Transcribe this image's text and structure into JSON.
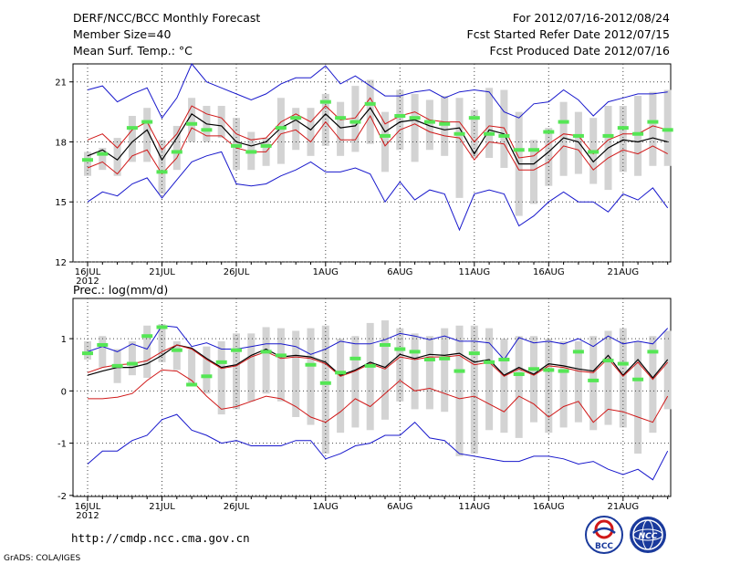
{
  "header": {
    "title": "DERF/NCC/BCC Monthly Forecast",
    "member_size": "Member Size=40",
    "variable": "Mean Surf. Temp.: °C",
    "forecast_period": "For 2012/07/16-2012/08/24",
    "started_refer": "Fcst Started Refer Date 2012/07/15",
    "produced": "Fcst Produced Date 2012/07/16"
  },
  "footer": {
    "url": "http://cmdp.ncc.cma.gov.cn",
    "credit": "GrADS: COLA/IGES",
    "logo_bcc_text": "BCC",
    "logo_ncc_text": "NCC"
  },
  "colors": {
    "bar": "#d3d3d3",
    "median": "#55e655",
    "envelope": "#1818cc",
    "spread": "#d01818",
    "mean": "#000000",
    "grid": "#444444"
  },
  "chart_data": [
    {
      "type": "line",
      "title": "Mean Surf. Temp.: °C",
      "xlabel": "",
      "ylabel": "",
      "x_tick_labels": [
        "16JUL",
        "21JUL",
        "26JUL",
        "1AUG",
        "6AUG",
        "11AUG",
        "16AUG",
        "21AUG"
      ],
      "x_tick_day_index": [
        0,
        5,
        10,
        16,
        21,
        26,
        31,
        36
      ],
      "year_label": "2012",
      "y_ticks": [
        12,
        15,
        18,
        21
      ],
      "ylim": [
        12,
        21.9
      ],
      "days": 40,
      "grid": true,
      "series": [
        {
          "name": "upper_envelope",
          "color_key": "envelope",
          "values": [
            20.6,
            20.8,
            20.0,
            20.4,
            20.7,
            19.2,
            20.2,
            21.9,
            21.0,
            20.7,
            20.4,
            20.1,
            20.4,
            20.9,
            21.2,
            21.2,
            21.8,
            20.9,
            21.3,
            20.8,
            20.3,
            20.3,
            20.5,
            20.6,
            20.2,
            20.5,
            20.6,
            20.5,
            19.5,
            19.2,
            19.9,
            20.0,
            20.6,
            20.1,
            19.3,
            20.0,
            20.2,
            20.4,
            20.4,
            20.5
          ]
        },
        {
          "name": "upper_spread",
          "color_key": "spread",
          "values": [
            18.1,
            18.4,
            17.7,
            18.6,
            19.0,
            17.6,
            18.4,
            19.8,
            19.4,
            19.2,
            18.4,
            18.1,
            18.2,
            19.0,
            19.4,
            19.0,
            19.8,
            19.1,
            19.2,
            20.2,
            18.9,
            19.3,
            19.5,
            19.1,
            19.0,
            19.0,
            18.0,
            18.8,
            18.7,
            17.2,
            17.3,
            17.9,
            18.4,
            18.3,
            17.4,
            18.1,
            18.4,
            18.4,
            18.8,
            18.6
          ]
        },
        {
          "name": "ensemble_mean",
          "color_key": "mean",
          "values": [
            17.3,
            17.6,
            17.1,
            18.0,
            18.6,
            17.1,
            18.2,
            19.4,
            18.9,
            18.8,
            18.0,
            17.8,
            18.0,
            18.7,
            19.1,
            18.6,
            19.4,
            18.7,
            18.8,
            19.7,
            18.5,
            19.0,
            19.1,
            18.8,
            18.6,
            18.7,
            17.4,
            18.6,
            18.4,
            16.9,
            16.9,
            17.5,
            18.2,
            18.0,
            17.0,
            17.7,
            18.1,
            18.0,
            18.2,
            18.0
          ]
        },
        {
          "name": "lower_spread",
          "color_key": "spread",
          "values": [
            16.7,
            17.0,
            16.4,
            17.3,
            17.6,
            16.4,
            17.2,
            18.7,
            18.3,
            18.3,
            17.7,
            17.5,
            17.5,
            18.4,
            18.6,
            18.0,
            19.0,
            18.1,
            18.1,
            19.3,
            17.8,
            18.6,
            18.9,
            18.5,
            18.3,
            18.2,
            17.1,
            18.0,
            17.9,
            16.6,
            16.6,
            17.0,
            17.8,
            17.6,
            16.6,
            17.2,
            17.6,
            17.4,
            17.8,
            17.4
          ]
        },
        {
          "name": "lower_envelope",
          "color_key": "envelope",
          "values": [
            15.0,
            15.5,
            15.3,
            15.9,
            16.2,
            15.2,
            16.1,
            17.0,
            17.3,
            17.5,
            15.9,
            15.8,
            15.9,
            16.3,
            16.6,
            17.0,
            16.5,
            16.5,
            16.7,
            16.4,
            15.0,
            16.0,
            15.1,
            15.6,
            15.4,
            13.6,
            15.4,
            15.6,
            15.4,
            13.8,
            14.3,
            15.0,
            15.5,
            15.0,
            15.0,
            14.5,
            15.4,
            15.1,
            15.7,
            14.7
          ]
        }
      ],
      "bars": {
        "name": "member_range",
        "color_key": "bar",
        "low": [
          16.3,
          16.6,
          16.3,
          17.0,
          17.0,
          15.4,
          16.6,
          18.0,
          18.0,
          18.2,
          16.6,
          16.6,
          16.8,
          16.9,
          17.6,
          17.3,
          17.8,
          17.3,
          17.5,
          17.9,
          16.5,
          17.6,
          17.0,
          17.6,
          17.3,
          15.2,
          17.2,
          17.2,
          16.7,
          14.3,
          14.9,
          15.8,
          16.3,
          16.4,
          15.9,
          15.6,
          16.5,
          16.3,
          16.8,
          16.8
        ],
        "high": [
          17.5,
          17.7,
          18.2,
          19.3,
          19.7,
          18.1,
          18.8,
          20.2,
          19.8,
          19.8,
          19.2,
          18.5,
          18.2,
          20.2,
          19.7,
          19.7,
          20.4,
          20.0,
          20.8,
          21.1,
          19.5,
          20.6,
          20.4,
          20.1,
          20.3,
          20.2,
          19.6,
          20.7,
          20.6,
          19.5,
          18.1,
          18.7,
          20.0,
          19.5,
          19.2,
          19.8,
          19.8,
          20.3,
          20.5,
          20.6
        ]
      },
      "median_marks": {
        "name": "member_median",
        "color_key": "median",
        "values": [
          17.1,
          17.4,
          null,
          18.7,
          19.0,
          16.5,
          17.5,
          18.9,
          18.6,
          null,
          17.8,
          17.5,
          17.8,
          18.7,
          19.2,
          null,
          20.0,
          19.2,
          19.0,
          19.9,
          18.3,
          19.3,
          19.2,
          19.0,
          18.9,
          18.4,
          19.2,
          18.4,
          18.3,
          17.6,
          17.6,
          18.5,
          19.0,
          18.3,
          17.5,
          18.3,
          18.7,
          18.4,
          19.0,
          18.6
        ]
      }
    },
    {
      "type": "line",
      "title": "Prec.: log(mm/d)",
      "xlabel": "",
      "ylabel": "",
      "x_tick_labels": [
        "16JUL",
        "21JUL",
        "26JUL",
        "1AUG",
        "6AUG",
        "11AUG",
        "16AUG",
        "21AUG"
      ],
      "x_tick_day_index": [
        0,
        5,
        10,
        16,
        21,
        26,
        31,
        36
      ],
      "year_label": "2012",
      "y_ticks": [
        -2,
        -1,
        0,
        1
      ],
      "ylim": [
        -2.02,
        1.77
      ],
      "days": 40,
      "grid": true,
      "series": [
        {
          "name": "upper_envelope",
          "color_key": "envelope",
          "values": [
            0.75,
            0.85,
            0.75,
            0.9,
            0.8,
            1.25,
            1.22,
            0.85,
            0.92,
            0.8,
            0.8,
            0.85,
            0.9,
            0.9,
            0.85,
            0.7,
            0.8,
            0.95,
            0.9,
            0.9,
            0.98,
            1.1,
            1.05,
            0.98,
            1.05,
            0.95,
            0.95,
            0.92,
            0.6,
            1.02,
            0.92,
            0.95,
            0.9,
            1.0,
            0.85,
            1.05,
            0.9,
            0.95,
            0.9,
            1.2
          ]
        },
        {
          "name": "ensemble_mean",
          "color_key": "mean",
          "values": [
            0.3,
            0.38,
            0.45,
            0.45,
            0.52,
            0.68,
            0.88,
            0.82,
            0.62,
            0.45,
            0.5,
            0.68,
            0.8,
            0.65,
            0.68,
            0.65,
            0.55,
            0.3,
            0.4,
            0.55,
            0.45,
            0.7,
            0.62,
            0.7,
            0.68,
            0.72,
            0.55,
            0.6,
            0.3,
            0.45,
            0.32,
            0.52,
            0.48,
            0.42,
            0.38,
            0.68,
            0.3,
            0.6,
            0.25,
            0.6
          ]
        },
        {
          "name": "upper_spread",
          "color_key": "spread",
          "values": [
            0.35,
            0.45,
            0.5,
            0.52,
            0.58,
            0.75,
            0.88,
            0.8,
            0.6,
            0.43,
            0.48,
            0.65,
            0.75,
            0.62,
            0.65,
            0.62,
            0.52,
            0.28,
            0.38,
            0.52,
            0.42,
            0.65,
            0.6,
            0.65,
            0.65,
            0.68,
            0.5,
            0.55,
            0.28,
            0.42,
            0.3,
            0.48,
            0.45,
            0.38,
            0.35,
            0.62,
            0.28,
            0.55,
            0.22,
            0.55
          ]
        },
        {
          "name": "lower_spread",
          "color_key": "spread",
          "values": [
            -0.15,
            -0.15,
            -0.12,
            -0.05,
            0.2,
            0.4,
            0.38,
            0.2,
            -0.1,
            -0.35,
            -0.3,
            -0.2,
            -0.1,
            -0.15,
            -0.3,
            -0.5,
            -0.6,
            -0.4,
            -0.15,
            -0.3,
            -0.05,
            0.2,
            0.0,
            0.05,
            -0.05,
            -0.15,
            -0.1,
            -0.25,
            -0.4,
            -0.1,
            -0.25,
            -0.5,
            -0.3,
            -0.2,
            -0.6,
            -0.35,
            -0.4,
            -0.5,
            -0.6,
            -0.1
          ]
        },
        {
          "name": "lower_envelope",
          "color_key": "envelope",
          "values": [
            -1.4,
            -1.15,
            -1.15,
            -0.95,
            -0.85,
            -0.55,
            -0.45,
            -0.75,
            -0.85,
            -1.0,
            -0.95,
            -1.05,
            -1.05,
            -1.05,
            -0.95,
            -0.95,
            -1.3,
            -1.2,
            -1.05,
            -1.0,
            -0.85,
            -0.85,
            -0.6,
            -0.9,
            -0.95,
            -1.2,
            -1.25,
            -1.3,
            -1.35,
            -1.35,
            -1.25,
            -1.25,
            -1.3,
            -1.4,
            -1.35,
            -1.5,
            -1.6,
            -1.5,
            -1.7,
            -1.15
          ]
        }
      ],
      "bars": {
        "name": "member_range",
        "color_key": "bar",
        "low": [
          0.6,
          0.45,
          0.15,
          0.3,
          0.25,
          0.55,
          0.4,
          0.15,
          -0.05,
          -0.45,
          -0.35,
          -0.2,
          -0.05,
          -0.2,
          -0.5,
          -0.65,
          -1.2,
          -0.8,
          -0.7,
          -0.75,
          -0.55,
          -0.2,
          -0.35,
          -0.35,
          -0.4,
          -1.25,
          -1.2,
          -0.75,
          -0.8,
          -0.9,
          -0.6,
          -0.8,
          -0.7,
          -0.6,
          -0.75,
          -0.65,
          -0.7,
          -1.2,
          -0.8,
          -0.35
        ],
        "high": [
          0.95,
          1.05,
          0.8,
          0.95,
          1.25,
          1.28,
          0.95,
          0.8,
          0.85,
          0.95,
          1.1,
          1.1,
          1.22,
          1.2,
          1.15,
          1.2,
          1.25,
          1.0,
          1.05,
          1.3,
          1.35,
          1.2,
          1.1,
          1.05,
          1.2,
          1.25,
          1.25,
          1.2,
          1.0,
          1.05,
          1.05,
          1.0,
          0.95,
          0.95,
          1.05,
          1.15,
          1.2,
          0.95,
          1.05,
          1.15
        ]
      },
      "median_marks": {
        "name": "member_median",
        "color_key": "median",
        "values": [
          0.72,
          0.88,
          0.48,
          0.52,
          1.05,
          1.22,
          0.78,
          0.12,
          0.28,
          0.55,
          0.78,
          null,
          0.75,
          0.68,
          null,
          0.5,
          0.15,
          0.35,
          0.62,
          0.48,
          0.88,
          0.8,
          0.75,
          0.6,
          0.62,
          0.38,
          0.72,
          0.55,
          0.6,
          0.32,
          0.42,
          0.4,
          0.38,
          0.75,
          0.2,
          0.58,
          0.52,
          0.22,
          0.75,
          null
        ]
      }
    }
  ]
}
